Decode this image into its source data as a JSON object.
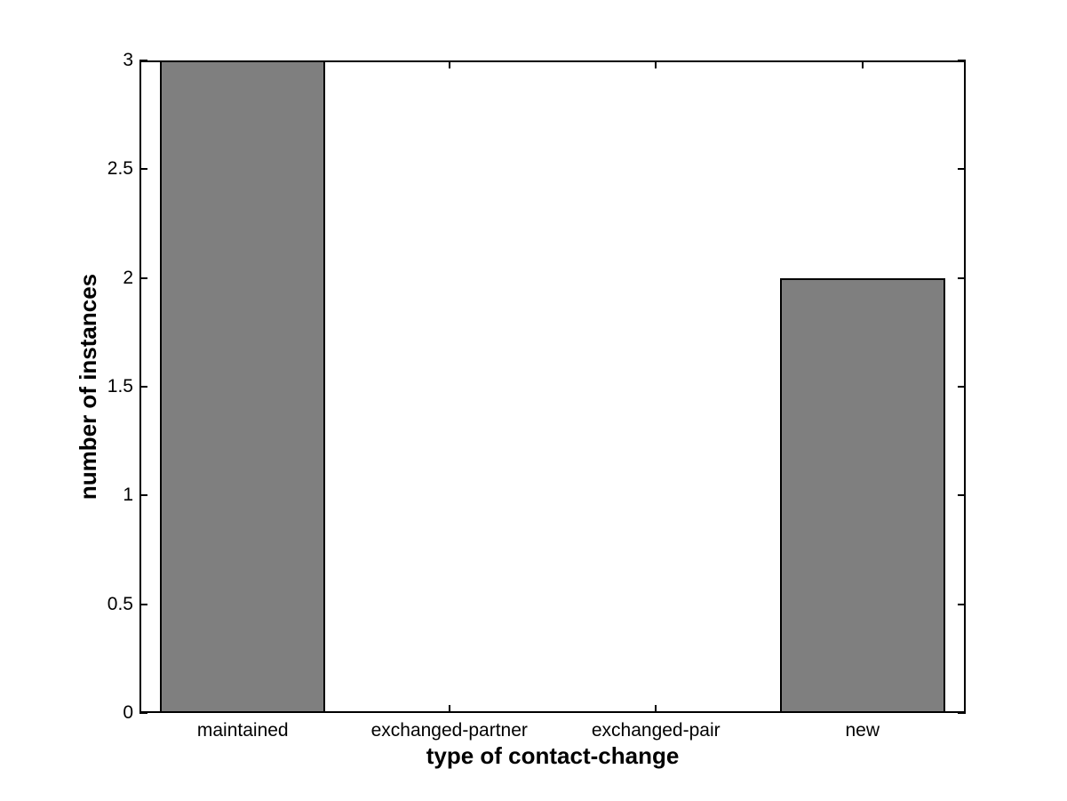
{
  "figure": {
    "background": "#ffffff"
  },
  "chart_data": {
    "type": "bar",
    "categories": [
      "maintained",
      "exchanged-partner",
      "exchanged-pair",
      "new"
    ],
    "values": [
      3,
      0,
      0,
      2
    ],
    "title": "",
    "xlabel": "type of contact-change",
    "ylabel": "number of instances",
    "ylim": [
      0,
      3
    ],
    "yticks": [
      0,
      0.5,
      1,
      1.5,
      2,
      2.5,
      3
    ],
    "ytick_labels": [
      "0",
      "0.5",
      "1",
      "1.5",
      "2",
      "2.5",
      "3"
    ],
    "bar_color": "#7f7f7f",
    "bar_edge_color": "#000000",
    "axis_color": "#000000",
    "text_color": "#000000",
    "bar_width_fraction": 0.8,
    "grid": false,
    "legend": "none",
    "layout_hints": {
      "box": true,
      "tick_direction": "in",
      "bar_baseline": 0
    }
  }
}
